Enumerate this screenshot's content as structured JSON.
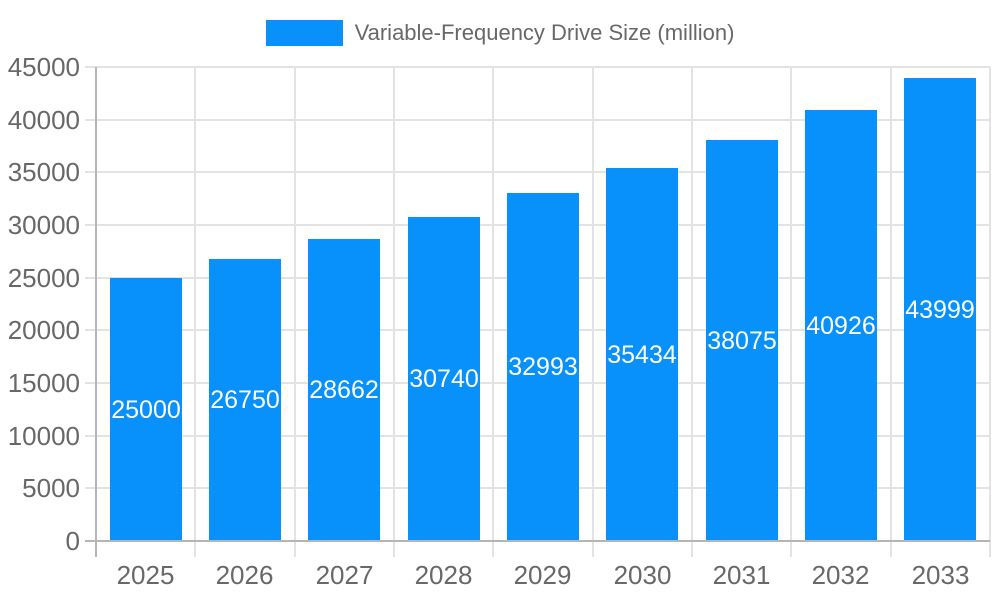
{
  "legend": {
    "label": "Variable-Frequency Drive Size (million)"
  },
  "chart_data": {
    "type": "bar",
    "title": "Variable-Frequency Drive Size (million)",
    "categories": [
      "2025",
      "2026",
      "2027",
      "2028",
      "2029",
      "2030",
      "2031",
      "2032",
      "2033"
    ],
    "values": [
      25000,
      26750,
      28662,
      30740,
      32993,
      35434,
      38075,
      40926,
      43999
    ],
    "xlabel": "",
    "ylabel": "",
    "ylim": [
      0,
      45000
    ],
    "yticks": [
      0,
      5000,
      10000,
      15000,
      20000,
      25000,
      30000,
      35000,
      40000,
      45000
    ],
    "grid": true,
    "legend_position": "top",
    "data_labels": "centered-in-bar",
    "colors": {
      "bar": "#0890FB",
      "axis_text": "#686868",
      "grid_line": "#e3e3e3",
      "axis_line": "#b5b5b5",
      "data_label": "#ffffff",
      "background": "#ffffff"
    }
  }
}
